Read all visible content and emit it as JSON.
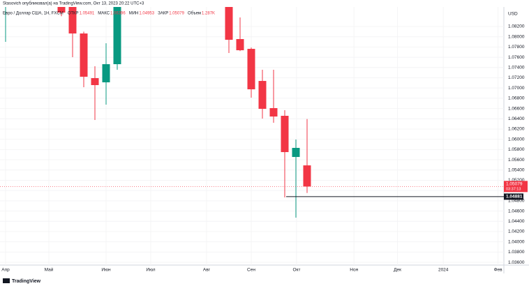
{
  "header": "Stasovich опубликовал(а) на TradingView.com, Окт 13, 2023 20:22 UTC+3",
  "footer": "TradingView",
  "chart_data": {
    "type": "candlestick",
    "legend": {
      "symbol": "Евро / Доллар США, 1Н, FXCM",
      "fields": [
        {
          "name": "ОТКР",
          "value": "1.05491"
        },
        {
          "name": "МАКС",
          "value": "1.06396"
        },
        {
          "name": "МИН",
          "value": "1.04953"
        },
        {
          "name": "ЗАКР",
          "value": "1.05079"
        },
        {
          "name": "Объем",
          "value": "1.287K"
        }
      ]
    },
    "x": [
      0,
      5,
      6,
      7,
      8,
      9,
      10,
      20,
      21,
      22,
      23,
      24,
      25,
      26,
      27
    ],
    "open": [
      1.0862,
      1.087,
      1.0862,
      1.08064,
      1.07193,
      1.07111,
      1.07465,
      1.087,
      1.07955,
      1.07764,
      1.07138,
      1.06608,
      1.06458,
      1.05655,
      1.05491
    ],
    "high": [
      1.088,
      1.088,
      1.0875,
      1.081,
      1.07424,
      1.07873,
      1.088,
      1.088,
      1.08377,
      1.0779,
      1.07356,
      1.07356,
      1.06567,
      1.05995,
      1.06396
    ],
    "low": [
      1.07901,
      1.084,
      1.07601,
      1.07016,
      1.06376,
      1.06676,
      1.07356,
      1.07683,
      1.0772,
      1.06812,
      1.06404,
      1.06322,
      1.04866,
      1.04471,
      1.04953
    ],
    "close": [
      1.087,
      1.08472,
      1.08064,
      1.0722,
      1.07057,
      1.07465,
      1.087,
      1.07941,
      1.07737,
      1.06975,
      1.06594,
      1.06444,
      1.0575,
      1.05832,
      1.05079
    ],
    "up_color": "#089981",
    "down_color": "#f23645",
    "xlim": [
      -0.5,
      44.625
    ],
    "xticks": [
      {
        "value": 0,
        "label": "Апр"
      },
      {
        "value": 3.875,
        "label": "Май"
      },
      {
        "value": 9,
        "label": "Июн"
      },
      {
        "value": 13,
        "label": "Июл"
      },
      {
        "value": 18,
        "label": "Авг"
      },
      {
        "value": 22,
        "label": "Сен"
      },
      {
        "value": 26.06,
        "label": "Окт"
      },
      {
        "value": 31.2,
        "label": "Ноя"
      },
      {
        "value": 35.1,
        "label": "Дек"
      },
      {
        "value": 39.2,
        "label": "2024"
      },
      {
        "value": 44.1,
        "label": "Фев"
      }
    ],
    "ylim": [
      1.03546,
      1.08581
    ],
    "yticks": [
      {
        "value": 1.082,
        "label": "1.08200"
      },
      {
        "value": 1.08,
        "label": "1.08000"
      },
      {
        "value": 1.078,
        "label": "1.07800"
      },
      {
        "value": 1.076,
        "label": "1.07600"
      },
      {
        "value": 1.074,
        "label": "1.07400"
      },
      {
        "value": 1.072,
        "label": "1.07200"
      },
      {
        "value": 1.07,
        "label": "1.07000"
      },
      {
        "value": 1.068,
        "label": "1.06800"
      },
      {
        "value": 1.066,
        "label": "1.06600"
      },
      {
        "value": 1.064,
        "label": "1.06400"
      },
      {
        "value": 1.062,
        "label": "1.06200"
      },
      {
        "value": 1.06,
        "label": "1.06000"
      },
      {
        "value": 1.058,
        "label": "1.05800"
      },
      {
        "value": 1.056,
        "label": "1.05600"
      },
      {
        "value": 1.054,
        "label": "1.05400"
      },
      {
        "value": 1.052,
        "label": "1.05200"
      },
      {
        "value": 1.05,
        "label": "1.05000"
      },
      {
        "value": 1.048,
        "label": "1.04800"
      },
      {
        "value": 1.046,
        "label": "1.04600"
      },
      {
        "value": 1.044,
        "label": "1.04400"
      },
      {
        "value": 1.042,
        "label": "1.04200"
      },
      {
        "value": 1.04,
        "label": "1.04000"
      },
      {
        "value": 1.038,
        "label": "1.03800"
      },
      {
        "value": 1.036,
        "label": "1.03600"
      }
    ],
    "y_unit": "USD",
    "grid": true,
    "last_price": {
      "value": 1.05079,
      "countdown": "03:37:13"
    },
    "price_line": {
      "value": 1.04881,
      "label": "1.04881",
      "x": 25.125
    }
  }
}
